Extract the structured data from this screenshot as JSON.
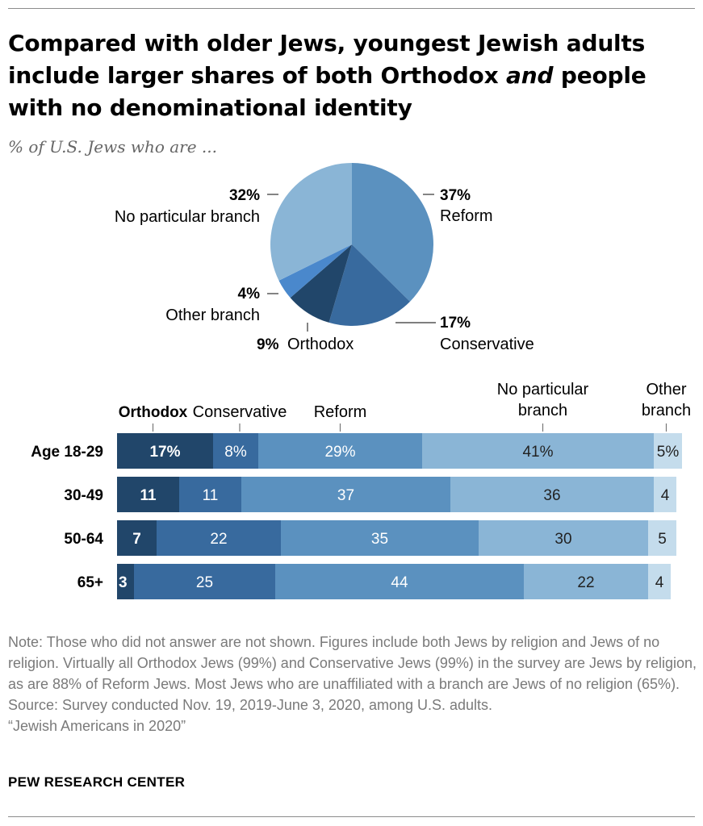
{
  "header": {
    "title_part1": "Compared with older Jews, youngest Jewish adults include larger shares of both Orthodox ",
    "title_emphasis": "and",
    "title_part2": " people with no denominational identity",
    "subtitle": "% of U.S. Jews who are ..."
  },
  "colors": {
    "orthodox": "#21466a",
    "conservative": "#386a9e",
    "reform": "#5b91bf",
    "no_branch": "#8ab5d6",
    "other_branch": "#c4dcec",
    "other_branch_pie": "#4a88cc"
  },
  "chart_data": [
    {
      "type": "pie",
      "slices": [
        {
          "name": "Reform",
          "value": 37,
          "label": "37%"
        },
        {
          "name": "Conservative",
          "value": 17,
          "label": "17%"
        },
        {
          "name": "Orthodox",
          "value": 9,
          "label": "9%"
        },
        {
          "name": "Other branch",
          "value": 4,
          "label": "4%"
        },
        {
          "name": "No particular branch",
          "value": 32,
          "label": "32%"
        }
      ]
    },
    {
      "type": "bar",
      "orientation": "horizontal",
      "stacked": true,
      "categories": [
        "Age 18-29",
        "30-49",
        "50-64",
        "65+"
      ],
      "series": [
        {
          "name": "Orthodox",
          "values": [
            17,
            11,
            7,
            3
          ],
          "labels": [
            "17%",
            "11",
            "7",
            "3"
          ]
        },
        {
          "name": "Conservative",
          "values": [
            8,
            11,
            22,
            25
          ],
          "labels": [
            "8%",
            "11",
            "22",
            "25"
          ]
        },
        {
          "name": "Reform",
          "values": [
            29,
            37,
            35,
            44
          ],
          "labels": [
            "29%",
            "37",
            "35",
            "44"
          ]
        },
        {
          "name": "No particular branch",
          "values": [
            41,
            36,
            30,
            22
          ],
          "labels": [
            "41%",
            "36",
            "30",
            "22"
          ]
        },
        {
          "name": "Other branch",
          "values": [
            5,
            4,
            5,
            4
          ],
          "labels": [
            "5%",
            "4",
            "5",
            "4"
          ]
        }
      ],
      "header_labels": [
        "Orthodox",
        "Conservative",
        "Reform",
        "No particular branch",
        "Other branch"
      ],
      "xlim": [
        0,
        100
      ]
    }
  ],
  "notes": {
    "note": "Note: Those who did not answer are not shown. Figures include both Jews by religion and Jews of no religion. Virtually all Orthodox Jews (99%) and Conservative Jews (99%) in the survey are Jews by religion, as are 88% of Reform Jews. Most Jews who are unaffiliated with a branch are Jews of no religion (65%).",
    "source": "Source: Survey conducted Nov. 19, 2019-June 3, 2020, among U.S. adults.",
    "report": "“Jewish Americans in 2020”"
  },
  "footer": {
    "org": "PEW RESEARCH CENTER"
  }
}
